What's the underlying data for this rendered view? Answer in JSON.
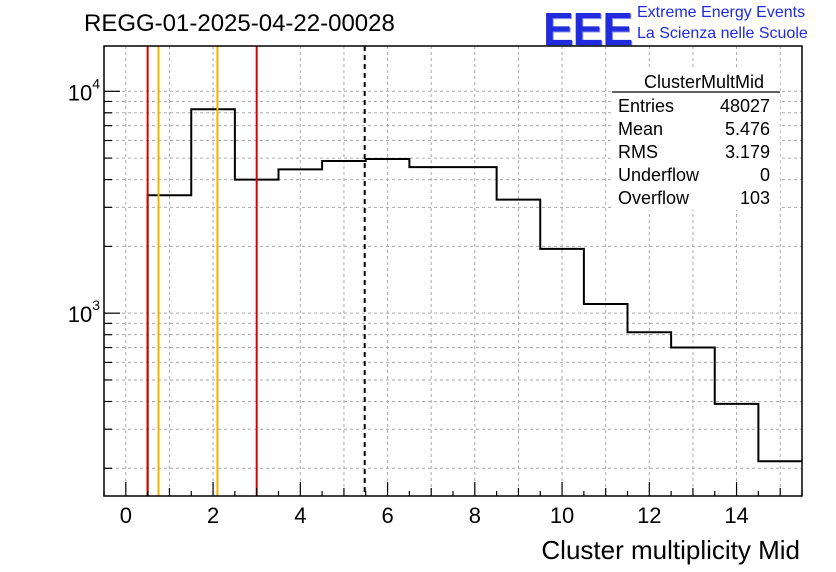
{
  "header": {
    "run_title": "REGG-01-2025-04-22-00028",
    "logo_text": "EEE",
    "brand_line1": "Extreme Energy Events",
    "brand_line2": "La Scienza nelle Scuole"
  },
  "stats_box": {
    "name": "ClusterMultMid",
    "rows": [
      {
        "label": "Entries",
        "value": "48027"
      },
      {
        "label": "Mean",
        "value": "5.476"
      },
      {
        "label": "RMS",
        "value": "3.179"
      },
      {
        "label": "Underflow",
        "value": "0"
      },
      {
        "label": "Overflow",
        "value": "103"
      }
    ]
  },
  "colors": {
    "histogram": "#000000",
    "red_marker": "#dd0000",
    "orange_marker": "#f0b400",
    "grid": "#aaaaaa"
  },
  "chart_data": {
    "type": "histogram",
    "title": "REGG-01-2025-04-22-00028",
    "xlabel": "Cluster multiplicity Mid",
    "ylabel": "",
    "y_scale": "log",
    "xlim": [
      -0.5,
      15.5
    ],
    "ylim": [
      150,
      16000
    ],
    "grid": true,
    "bins": [
      {
        "x_low": 0.5,
        "x_high": 1.5,
        "count": 3400
      },
      {
        "x_low": 1.5,
        "x_high": 2.5,
        "count": 8300
      },
      {
        "x_low": 2.5,
        "x_high": 3.5,
        "count": 4000
      },
      {
        "x_low": 3.5,
        "x_high": 4.5,
        "count": 4450
      },
      {
        "x_low": 4.5,
        "x_high": 5.5,
        "count": 4850
      },
      {
        "x_low": 5.5,
        "x_high": 6.5,
        "count": 4950
      },
      {
        "x_low": 6.5,
        "x_high": 8.5,
        "count": 4550
      },
      {
        "x_low": 8.5,
        "x_high": 9.5,
        "count": 3250
      },
      {
        "x_low": 9.5,
        "x_high": 10.5,
        "count": 1950
      },
      {
        "x_low": 10.5,
        "x_high": 11.5,
        "count": 1100
      },
      {
        "x_low": 11.5,
        "x_high": 12.5,
        "count": 820
      },
      {
        "x_low": 12.5,
        "x_high": 13.5,
        "count": 700
      },
      {
        "x_low": 13.5,
        "x_high": 14.5,
        "count": 390
      },
      {
        "x_low": 14.5,
        "x_high": 15.5,
        "count": 215
      }
    ],
    "x_ticks": [
      0,
      2,
      4,
      6,
      8,
      10,
      12,
      14
    ],
    "y_ticks": [
      {
        "value": 1000,
        "base": "10",
        "exp": "3"
      },
      {
        "value": 10000,
        "base": "10",
        "exp": "4"
      }
    ],
    "vertical_lines": [
      {
        "x": 0.5,
        "color": "red"
      },
      {
        "x": 0.75,
        "color": "orange"
      },
      {
        "x": 2.1,
        "color": "orange"
      },
      {
        "x": 3.0,
        "color": "red"
      },
      {
        "x": 5.476,
        "color": "black",
        "style": "dashed"
      }
    ]
  }
}
